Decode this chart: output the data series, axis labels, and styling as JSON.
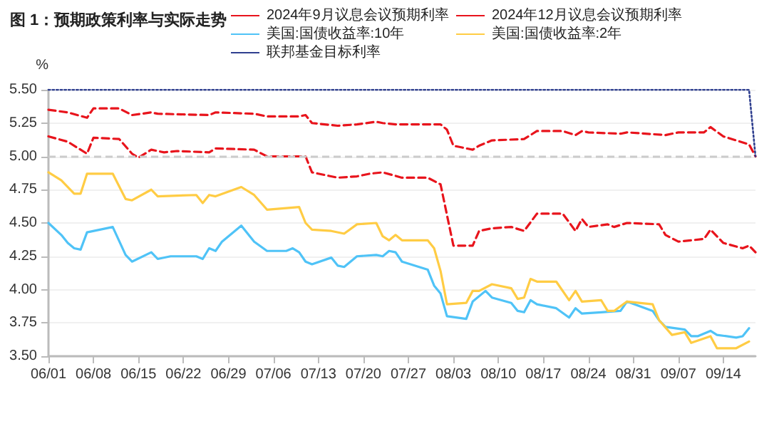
{
  "chart_data": {
    "type": "line",
    "title": "图 1：预期政策利率与实际走势",
    "ylabel": "%",
    "xlim": [
      "--06-01",
      "--09-19"
    ],
    "xticks": [
      {
        "value": "--06-01",
        "label": "06/01"
      },
      {
        "value": "--06-08",
        "label": "06/08"
      },
      {
        "value": "--06-15",
        "label": "06/15"
      },
      {
        "value": "--06-22",
        "label": "06/22"
      },
      {
        "value": "--06-29",
        "label": "06/29"
      },
      {
        "value": "--07-06",
        "label": "07/06"
      },
      {
        "value": "--07-13",
        "label": "07/13"
      },
      {
        "value": "--07-20",
        "label": "07/20"
      },
      {
        "value": "--07-27",
        "label": "07/27"
      },
      {
        "value": "--08-03",
        "label": "08/03"
      },
      {
        "value": "--08-10",
        "label": "08/10"
      },
      {
        "value": "--08-17",
        "label": "08/17"
      },
      {
        "value": "--08-24",
        "label": "08/24"
      },
      {
        "value": "--08-31",
        "label": "08/31"
      },
      {
        "value": "--09-07",
        "label": "09/07"
      },
      {
        "value": "--09-14",
        "label": "09/14"
      }
    ],
    "ylim": [
      3.5,
      5.5
    ],
    "yticks": [
      {
        "value": 3.5,
        "label": "3.50"
      },
      {
        "value": 3.75,
        "label": "3.75"
      },
      {
        "value": 4.0,
        "label": "4.00"
      },
      {
        "value": 4.25,
        "label": "4.25"
      },
      {
        "value": 4.5,
        "label": "4.50"
      },
      {
        "value": 4.75,
        "label": "4.75"
      },
      {
        "value": 5.0,
        "label": "5.00"
      },
      {
        "value": 5.25,
        "label": "5.25"
      },
      {
        "value": 5.5,
        "label": "5.50"
      }
    ],
    "grid": "y",
    "legend": "top",
    "marker": "none",
    "ref_lines": [
      {
        "axis": "y",
        "value": 5.0,
        "label": null,
        "color": "#cccccc",
        "line_style": "dashed"
      }
    ],
    "series": [
      {
        "name": "2024年9月议息会议预期利率",
        "color": "#e8141c",
        "line_style": "dashed",
        "x": [
          "--06-01",
          "--06-04",
          "--06-07",
          "--06-08",
          "--06-12",
          "--06-14",
          "--06-17",
          "--06-18",
          "--06-26",
          "--06-27",
          "--07-03",
          "--07-05",
          "--07-10",
          "--07-11",
          "--07-12",
          "--07-16",
          "--07-19",
          "--07-22",
          "--07-23",
          "--07-25",
          "--08-01",
          "--08-02",
          "--08-03",
          "--08-06",
          "--08-07",
          "--08-09",
          "--08-14",
          "--08-16",
          "--08-20",
          "--08-22",
          "--08-23",
          "--08-24",
          "--08-29",
          "--08-30",
          "--09-05",
          "--09-07",
          "--09-11",
          "--09-12",
          "--09-14",
          "--09-18",
          "--09-19"
        ],
        "values": [
          5.35,
          5.33,
          5.29,
          5.36,
          5.36,
          5.31,
          5.33,
          5.32,
          5.31,
          5.33,
          5.32,
          5.3,
          5.3,
          5.31,
          5.25,
          5.23,
          5.24,
          5.26,
          5.25,
          5.24,
          5.24,
          5.2,
          5.08,
          5.05,
          5.08,
          5.12,
          5.13,
          5.19,
          5.19,
          5.16,
          5.19,
          5.18,
          5.17,
          5.18,
          5.16,
          5.18,
          5.18,
          5.22,
          5.15,
          5.09,
          5.0
        ]
      },
      {
        "name": "2024年12月议息会议预期利率",
        "color": "#e8141c",
        "line_style": "dashed",
        "x": [
          "--06-01",
          "--06-04",
          "--06-07",
          "--06-08",
          "--06-12",
          "--06-14",
          "--06-15",
          "--06-17",
          "--06-19",
          "--06-21",
          "--06-26",
          "--06-27",
          "--07-03",
          "--07-05",
          "--07-09",
          "--07-11",
          "--07-12",
          "--07-16",
          "--07-19",
          "--07-21",
          "--07-23",
          "--07-26",
          "--07-30",
          "--08-01",
          "--08-03",
          "--08-06",
          "--08-07",
          "--08-09",
          "--08-12",
          "--08-14",
          "--08-16",
          "--08-20",
          "--08-22",
          "--08-23",
          "--08-24",
          "--08-27",
          "--08-28",
          "--08-30",
          "--09-04",
          "--09-05",
          "--09-07",
          "--09-11",
          "--09-12",
          "--09-14",
          "--09-17",
          "--09-18",
          "--09-19"
        ],
        "values": [
          5.15,
          5.11,
          5.02,
          5.14,
          5.13,
          5.02,
          4.99,
          5.05,
          5.03,
          5.04,
          5.03,
          5.06,
          5.05,
          5.0,
          5.0,
          5.0,
          4.88,
          4.84,
          4.85,
          4.87,
          4.88,
          4.84,
          4.84,
          4.79,
          4.33,
          4.33,
          4.44,
          4.46,
          4.47,
          4.44,
          4.57,
          4.57,
          4.44,
          4.53,
          4.47,
          4.49,
          4.47,
          4.5,
          4.49,
          4.41,
          4.36,
          4.38,
          4.45,
          4.35,
          4.31,
          4.33,
          4.28
        ]
      },
      {
        "name": "美国:国债收益率:10年",
        "color": "#4fc3f7",
        "line_style": "solid",
        "x": [
          "--06-01",
          "--06-03",
          "--06-04",
          "--06-05",
          "--06-06",
          "--06-07",
          "--06-11",
          "--06-13",
          "--06-14",
          "--06-17",
          "--06-18",
          "--06-20",
          "--06-24",
          "--06-25",
          "--06-26",
          "--06-27",
          "--06-28",
          "--07-01",
          "--07-03",
          "--07-05",
          "--07-08",
          "--07-09",
          "--07-10",
          "--07-11",
          "--07-12",
          "--07-15",
          "--07-16",
          "--07-17",
          "--07-19",
          "--07-22",
          "--07-23",
          "--07-24",
          "--07-25",
          "--07-26",
          "--07-30",
          "--07-31",
          "--08-01",
          "--08-02",
          "--08-05",
          "--08-06",
          "--08-08",
          "--08-09",
          "--08-12",
          "--08-13",
          "--08-14",
          "--08-15",
          "--08-16",
          "--08-19",
          "--08-21",
          "--08-22",
          "--08-23",
          "--08-26",
          "--08-29",
          "--08-30",
          "--09-03",
          "--09-04",
          "--09-05",
          "--09-08",
          "--09-09",
          "--09-10",
          "--09-12",
          "--09-13",
          "--09-16",
          "--09-17",
          "--09-18"
        ],
        "values": [
          4.5,
          4.41,
          4.35,
          4.31,
          4.3,
          4.43,
          4.47,
          4.26,
          4.21,
          4.28,
          4.23,
          4.25,
          4.25,
          4.23,
          4.31,
          4.29,
          4.36,
          4.48,
          4.36,
          4.29,
          4.29,
          4.31,
          4.28,
          4.21,
          4.19,
          4.24,
          4.18,
          4.17,
          4.25,
          4.26,
          4.25,
          4.29,
          4.28,
          4.21,
          4.15,
          4.03,
          3.97,
          3.8,
          3.78,
          3.91,
          3.99,
          3.94,
          3.9,
          3.84,
          3.83,
          3.92,
          3.89,
          3.86,
          3.79,
          3.86,
          3.82,
          3.83,
          3.84,
          3.91,
          3.84,
          3.77,
          3.72,
          3.7,
          3.65,
          3.65,
          3.69,
          3.66,
          3.64,
          3.65,
          3.71
        ]
      },
      {
        "name": "美国:国债收益率:2年",
        "color": "#ffcc44",
        "line_style": "solid",
        "x": [
          "--06-01",
          "--06-03",
          "--06-05",
          "--06-06",
          "--06-07",
          "--06-11",
          "--06-13",
          "--06-14",
          "--06-17",
          "--06-18",
          "--06-24",
          "--06-25",
          "--06-26",
          "--06-27",
          "--07-01",
          "--07-03",
          "--07-05",
          "--07-10",
          "--07-11",
          "--07-12",
          "--07-15",
          "--07-17",
          "--07-19",
          "--07-22",
          "--07-23",
          "--07-24",
          "--07-25",
          "--07-26",
          "--07-30",
          "--07-31",
          "--08-01",
          "--08-02",
          "--08-05",
          "--08-06",
          "--08-07",
          "--08-09",
          "--08-12",
          "--08-13",
          "--08-14",
          "--08-15",
          "--08-16",
          "--08-19",
          "--08-21",
          "--08-22",
          "--08-23",
          "--08-26",
          "--08-27",
          "--08-28",
          "--08-30",
          "--09-03",
          "--09-04",
          "--09-06",
          "--09-08",
          "--09-09",
          "--09-12",
          "--09-13",
          "--09-16",
          "--09-18"
        ],
        "values": [
          4.88,
          4.82,
          4.72,
          4.72,
          4.87,
          4.87,
          4.68,
          4.67,
          4.75,
          4.7,
          4.71,
          4.65,
          4.71,
          4.7,
          4.77,
          4.71,
          4.6,
          4.62,
          4.5,
          4.45,
          4.44,
          4.42,
          4.49,
          4.5,
          4.4,
          4.37,
          4.41,
          4.37,
          4.37,
          4.31,
          4.14,
          3.89,
          3.9,
          3.99,
          3.99,
          4.04,
          4.01,
          3.93,
          3.94,
          4.08,
          4.06,
          4.06,
          3.92,
          3.99,
          3.91,
          3.92,
          3.84,
          3.84,
          3.91,
          3.89,
          3.77,
          3.66,
          3.68,
          3.6,
          3.65,
          3.56,
          3.56,
          3.61
        ]
      },
      {
        "name": "联邦基金目标利率",
        "color": "#2f3f8f",
        "line_style": "dotted",
        "x": [
          "--06-01",
          "--09-18",
          "--09-19"
        ],
        "values": [
          5.5,
          5.5,
          5.0
        ]
      }
    ]
  }
}
